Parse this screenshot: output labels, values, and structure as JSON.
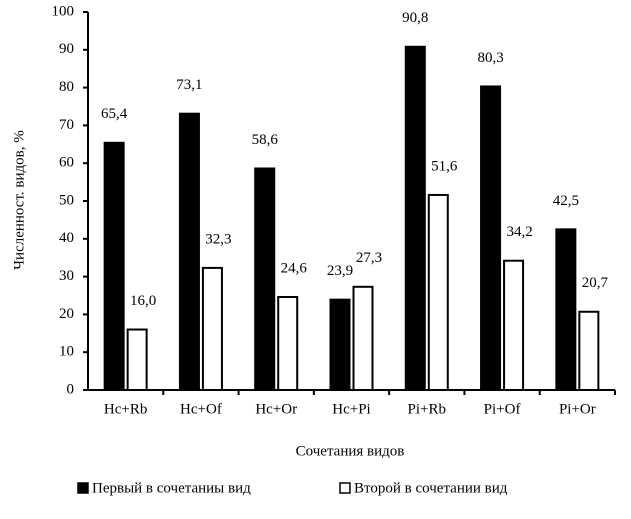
{
  "chart_data": {
    "type": "bar",
    "y_label": "Численност. видов, %",
    "x_label": "Сочетания видов",
    "categories": [
      "Hc+Rb",
      "Hc+Of",
      "Hc+Or",
      "Hc+Pi",
      "Pi+Rb",
      "Pi+Of",
      "Pi+Or"
    ],
    "series": [
      {
        "name": "Первый в сочетаниы вид",
        "color": "#000000",
        "values": [
          65.4,
          73.1,
          58.6,
          23.9,
          90.8,
          80.3,
          42.5
        ],
        "value_labels": [
          "65,4",
          "73,1",
          "58,6",
          "23,9",
          "90,8",
          "80,3",
          "42,5"
        ]
      },
      {
        "name": "Второй в сочетании вид",
        "color": "#ffffff",
        "values": [
          16.0,
          32.3,
          24.6,
          27.3,
          51.6,
          34.2,
          20.7
        ],
        "value_labels": [
          "16,0",
          "32,3",
          "24,6",
          "27,3",
          "51,6",
          "34,2",
          "20,7"
        ]
      }
    ],
    "ylim": [
      0,
      100
    ],
    "yticks": [
      0,
      10,
      20,
      30,
      40,
      50,
      60,
      70,
      80,
      90,
      100
    ]
  }
}
